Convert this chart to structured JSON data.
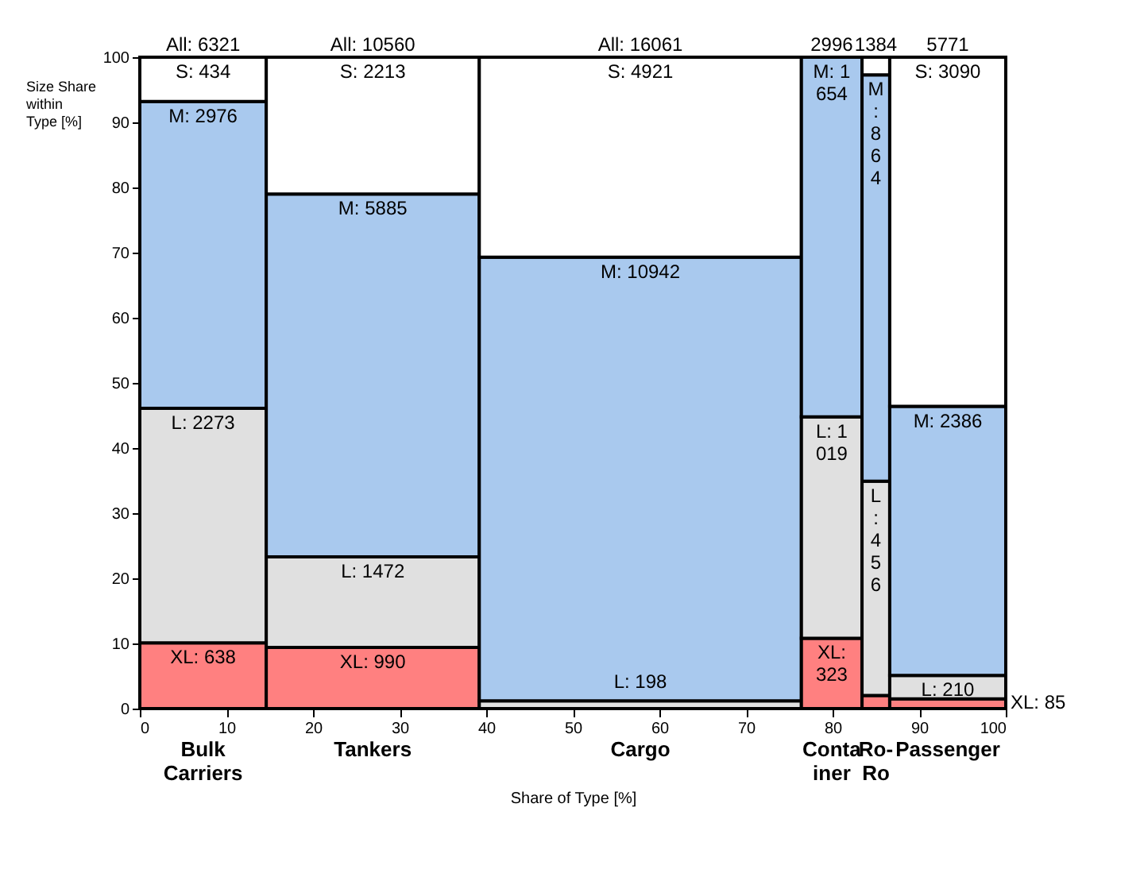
{
  "chart_data": {
    "type": "bar",
    "stacked": true,
    "xlabel": "Share of Type [%]",
    "ylabel": "Size Share within Type [%]",
    "x": [
      7.3,
      26.9,
      57.8,
      79.9,
      85.0,
      93.3
    ],
    "xlim": [
      0,
      100
    ],
    "xticks": [
      0,
      10,
      20,
      30,
      40,
      50,
      60,
      70,
      80,
      90,
      100
    ],
    "ylim": [
      0,
      100
    ],
    "yticks": [
      0,
      10,
      20,
      30,
      40,
      50,
      60,
      70,
      80,
      90,
      100
    ],
    "series": [
      {
        "color": "#ff8080",
        "values": [
          10.1,
          9.4,
          null,
          10.8,
          2.0,
          1.5
        ]
      },
      {
        "color": "#e0e0e0",
        "values": [
          36.0,
          13.9,
          1.2,
          34.0,
          32.9,
          3.6
        ]
      },
      {
        "color": "#a9c9ee",
        "values": [
          47.1,
          55.7,
          68.1,
          55.2,
          62.4,
          41.3
        ]
      },
      {
        "color": "#ffffff",
        "values": [
          6.8,
          21.0,
          30.7,
          null,
          2.7,
          53.6
        ]
      }
    ],
    "annotations": [
      "All: 6321",
      "All: 10560",
      "All: 16061",
      "2996",
      "1384",
      "5771",
      {
        "text": "Bulk Carriers",
        "x": 7.3,
        "y": 0
      },
      {
        "text": "Tankers",
        "x": 26.9,
        "y": 0
      },
      {
        "text": "Cargo",
        "x": 57.8,
        "y": 0
      },
      {
        "text": "Container",
        "x": 79.9,
        "y": 0
      },
      {
        "text": "Ro-Ro",
        "x": 85.0,
        "y": 0
      },
      {
        "text": "Passenger",
        "x": 93.3,
        "y": 0
      },
      {
        "text": "XL: 638",
        "x": 7.3,
        "y": 10.1
      },
      {
        "text": "L: 2273",
        "x": 7.3,
        "y": 46.1
      },
      {
        "text": "M: 2976",
        "x": 7.3,
        "y": 93.2
      },
      {
        "text": "S: 434",
        "x": 7.3,
        "y": 100
      },
      {
        "text": "XL: 990",
        "x": 26.9,
        "y": 9.4
      },
      {
        "text": "L: 1472",
        "x": 26.9,
        "y": 23.3
      },
      {
        "text": "M: 5885",
        "x": 26.9,
        "y": 79.0
      },
      {
        "text": "S: 2213",
        "x": 26.9,
        "y": 100
      },
      {
        "text": "L: 198",
        "x": 57.8,
        "y": 1.2
      },
      {
        "text": "M: 10942",
        "x": 57.8,
        "y": 69.3
      },
      {
        "text": "S: 4921",
        "x": 57.8,
        "y": 100
      },
      {
        "text": "XL: 323",
        "x": 79.9,
        "y": 10.8
      },
      {
        "text": "L: 1019",
        "x": 79.9,
        "y": 44.8
      },
      {
        "text": "M: 1654",
        "x": 79.9,
        "y": 100
      },
      {
        "text": "L: 456",
        "x": 85.0,
        "y": 34.9
      },
      {
        "text": "M: 864",
        "x": 85.0,
        "y": 97.3
      },
      {
        "text": "XL: 85",
        "x": 100,
        "y": 1.5
      },
      {
        "text": "L: 210",
        "x": 93.3,
        "y": 5.1
      },
      {
        "text": "M: 2386",
        "x": 93.3,
        "y": 46.4
      },
      {
        "text": "S: 3090",
        "x": 93.3,
        "y": 100
      }
    ]
  }
}
